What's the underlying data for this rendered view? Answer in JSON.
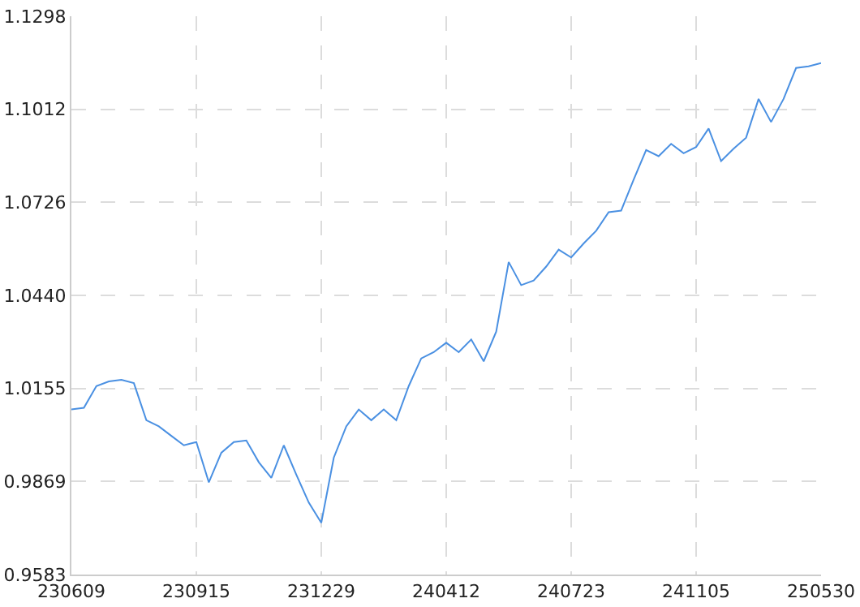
{
  "chart_data": {
    "type": "line",
    "categories": [
      "230609",
      null,
      null,
      null,
      null,
      null,
      null,
      null,
      null,
      null,
      "230915",
      null,
      null,
      null,
      null,
      null,
      null,
      null,
      null,
      null,
      "231229",
      null,
      null,
      null,
      null,
      null,
      null,
      null,
      null,
      null,
      "240412",
      null,
      null,
      null,
      null,
      null,
      null,
      null,
      null,
      null,
      "240723",
      null,
      null,
      null,
      null,
      null,
      null,
      null,
      null,
      null,
      "241105",
      null,
      null,
      null,
      null,
      null,
      null,
      null,
      null,
      null,
      "250530"
    ],
    "series": [
      {
        "color": "#4a90e2",
        "values": [
          1.009,
          1.0095,
          1.0162,
          1.0176,
          1.0181,
          1.0171,
          1.0057,
          1.0038,
          1.0009,
          0.998,
          0.999,
          0.9866,
          0.9957,
          0.999,
          0.9995,
          0.9928,
          0.988,
          0.998,
          0.989,
          0.9804,
          0.9742,
          0.9942,
          1.0038,
          1.009,
          1.0057,
          1.009,
          1.0057,
          1.0162,
          1.0247,
          1.0266,
          1.0295,
          1.0266,
          1.0305,
          1.0238,
          1.0329,
          1.0543,
          1.0472,
          1.0486,
          1.0529,
          1.0581,
          1.0557,
          1.06,
          1.0639,
          1.0696,
          1.0701,
          1.0796,
          1.0887,
          1.0868,
          1.0906,
          1.0877,
          1.0896,
          1.0953,
          1.0853,
          1.0891,
          1.0925,
          1.1044,
          1.0973,
          1.1044,
          1.1139,
          1.1144,
          1.1154
        ]
      }
    ],
    "ylim": [
      0.9583,
      1.1298
    ],
    "yticks": [
      0.9583,
      0.9869,
      1.0155,
      {
        "value": 1.044,
        "label": "1.0440"
      },
      1.0726,
      1.1012,
      1.1298
    ],
    "grid": true,
    "marker": "none",
    "line_style": "solid"
  }
}
